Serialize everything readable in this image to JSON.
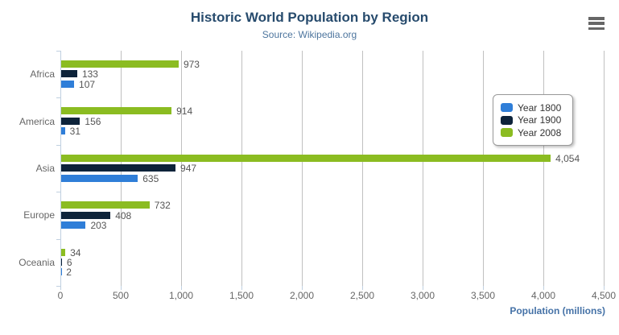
{
  "chart_data": {
    "type": "bar",
    "orientation": "horizontal",
    "title": "Historic World Population by Region",
    "subtitle": "Source: Wikipedia.org",
    "categories": [
      "Africa",
      "America",
      "Asia",
      "Europe",
      "Oceania"
    ],
    "series": [
      {
        "name": "Year 1800",
        "color": "#2f7ed8",
        "values": [
          107,
          31,
          635,
          203,
          2
        ]
      },
      {
        "name": "Year 1900",
        "color": "#0d233a",
        "values": [
          133,
          156,
          947,
          408,
          6
        ]
      },
      {
        "name": "Year 2008",
        "color": "#8bbc21",
        "values": [
          973,
          914,
          4054,
          732,
          34
        ]
      }
    ],
    "bar_order_top_to_bottom": [
      "Year 2008",
      "Year 1900",
      "Year 1800"
    ],
    "xlabel": "Population (millions)",
    "ylabel": "",
    "xlim": [
      0,
      4500
    ],
    "x_ticks": [
      0,
      500,
      1000,
      1500,
      2000,
      2500,
      3000,
      3500,
      4000,
      4500
    ],
    "grid": true,
    "data_labels": true,
    "legend_position": "right-middle"
  },
  "menu": {
    "icon": "hamburger-icon"
  },
  "colors": {
    "title": "#274b6d",
    "subtitle": "#4d759e",
    "grid_line": "#c0c0c0",
    "axis_line": "#c0d0e0",
    "axis_label": "#666666",
    "data_label": "#555555",
    "axis_title": "#4572a7",
    "legend_border": "#999999",
    "legend_text": "#333333",
    "menu_icon": "#666666",
    "background": "#ffffff"
  }
}
